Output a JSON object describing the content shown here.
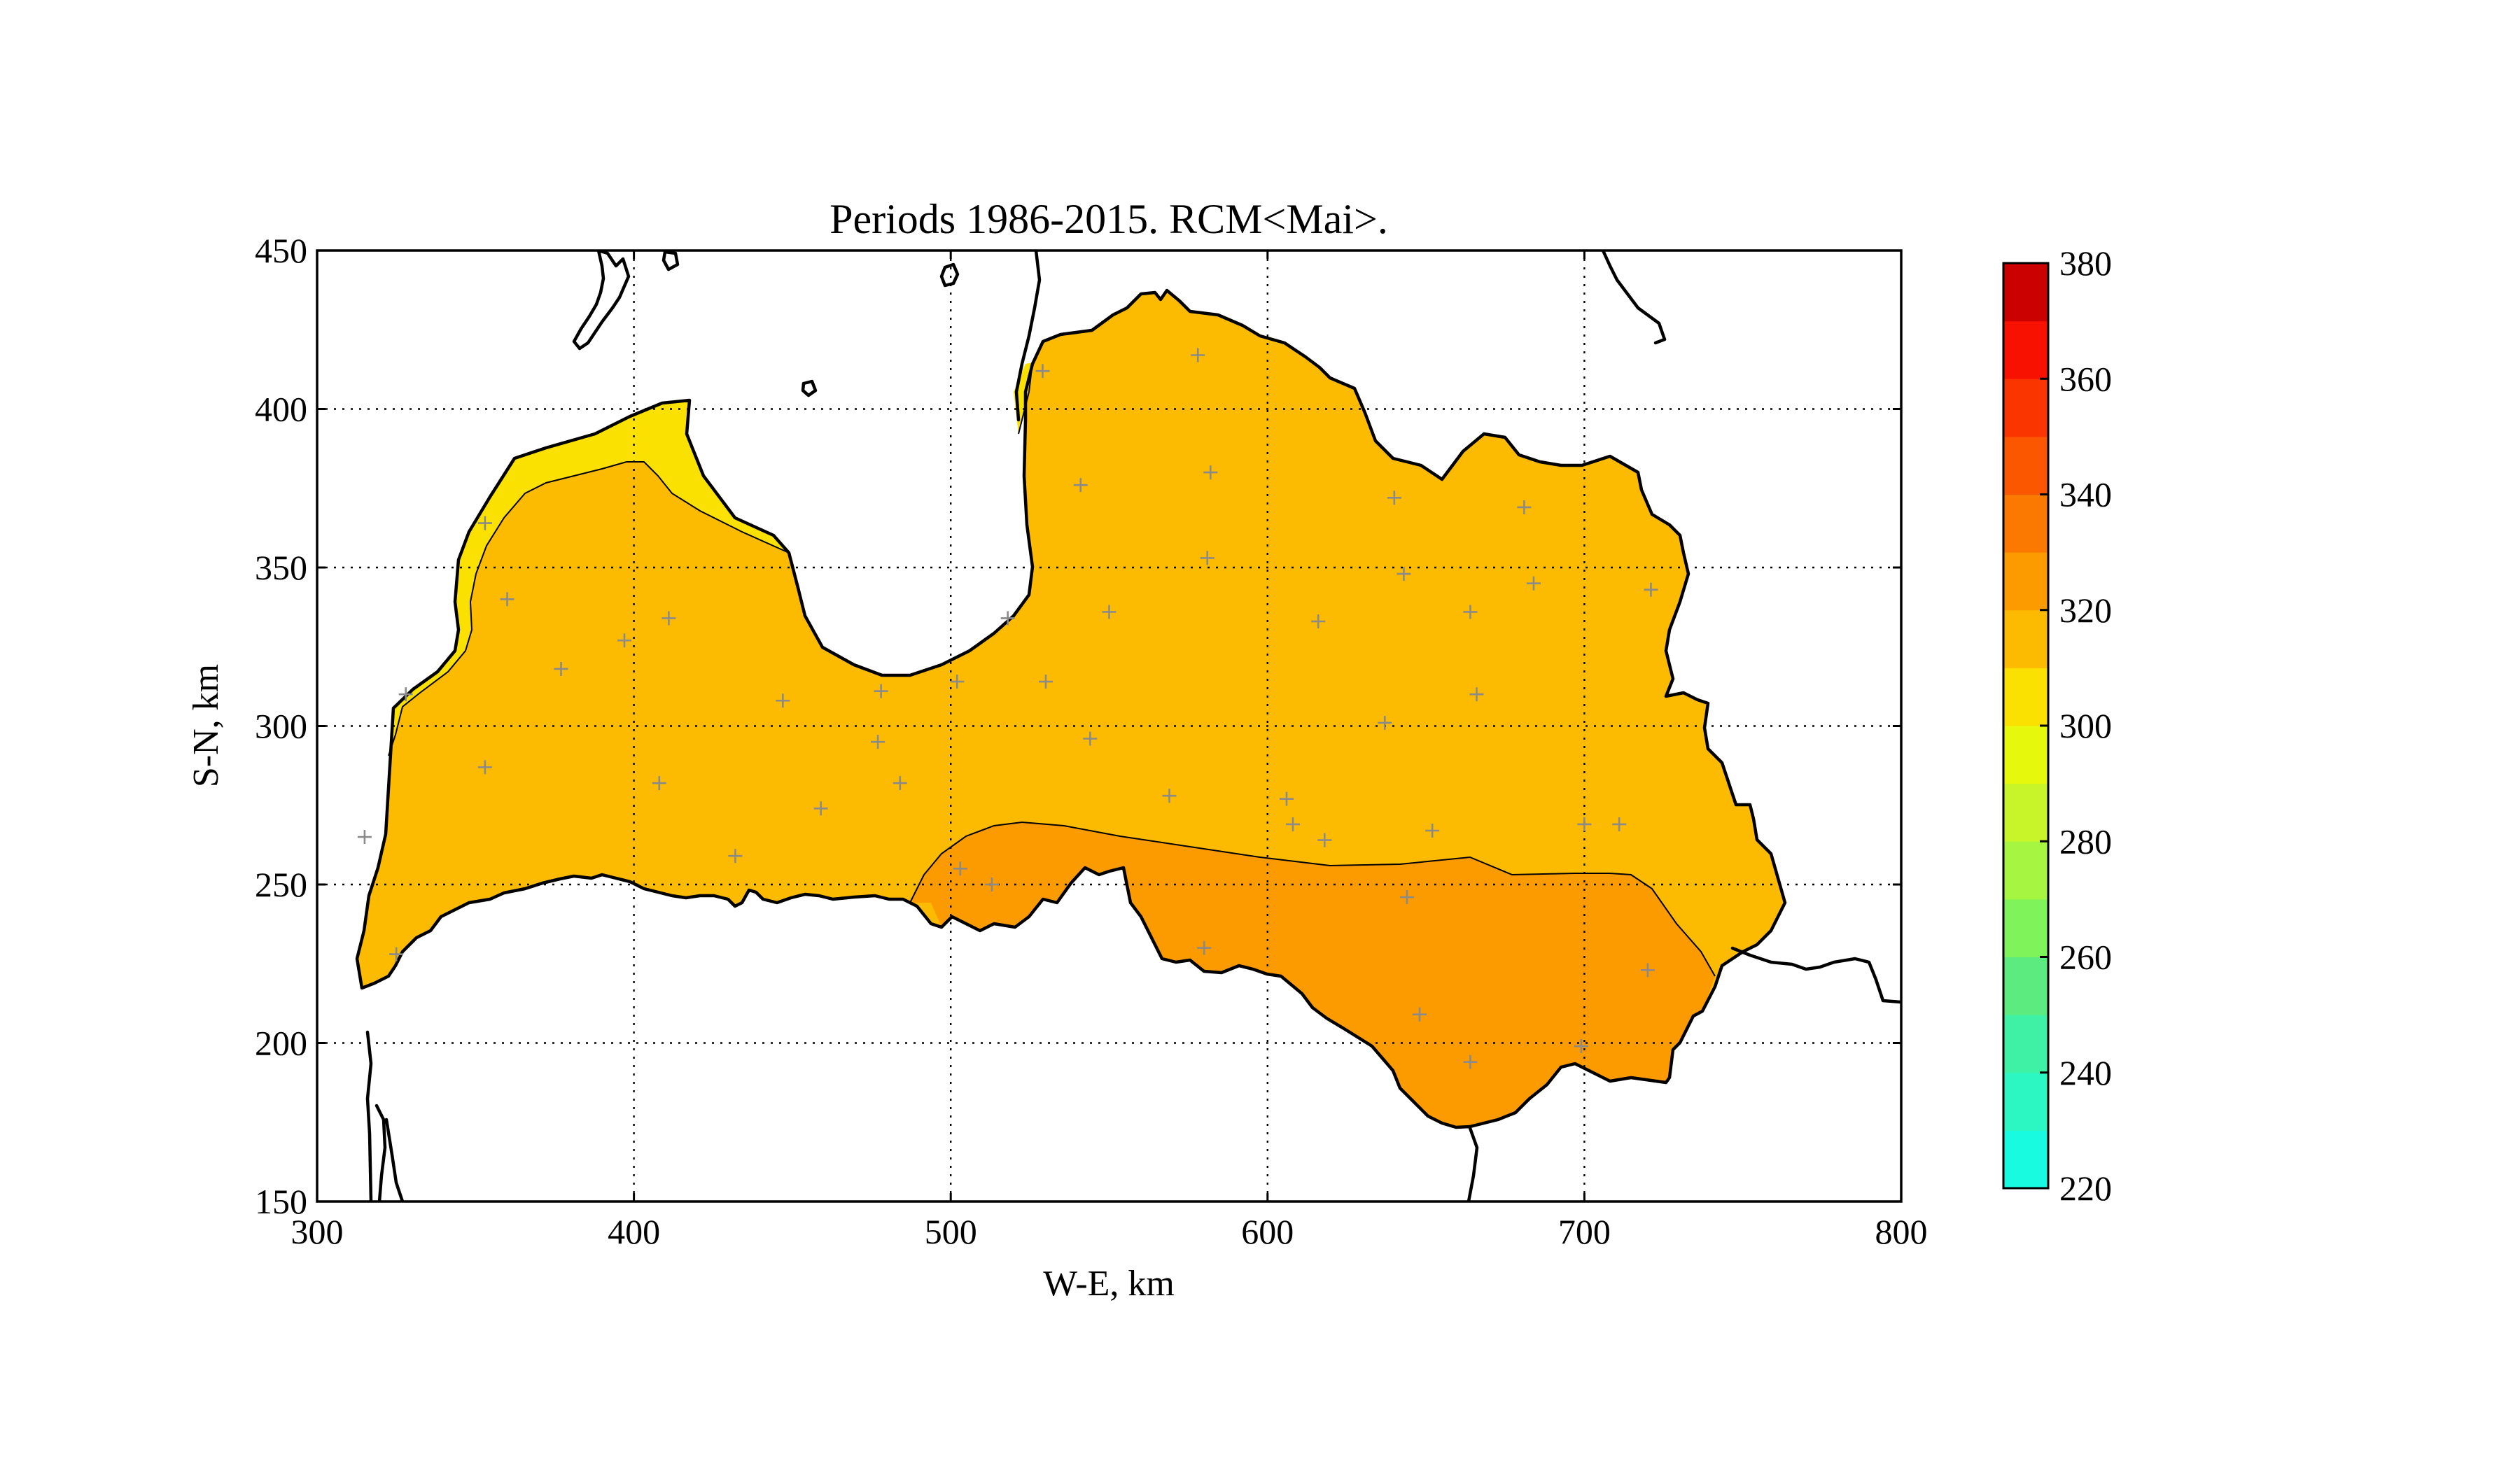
{
  "chart_data": {
    "type": "contour-map",
    "title": "Periods 1986-2015. RCM<Mai>.",
    "xlabel": "W-E, km",
    "ylabel": "S-N, km",
    "xlim": [
      300,
      800
    ],
    "ylim": [
      150,
      450
    ],
    "xticks": [
      "300",
      "400",
      "500",
      "600",
      "700",
      "800"
    ],
    "yticks": [
      "150",
      "200",
      "250",
      "300",
      "350",
      "400",
      "450"
    ],
    "grid": true,
    "colorbar": {
      "min": 220,
      "max": 380,
      "step": 10,
      "tick_labels": [
        "220",
        "240",
        "260",
        "280",
        "300",
        "320",
        "340",
        "360",
        "380"
      ],
      "colors": [
        "#19fbe0",
        "#2cf6c2",
        "#3ff1a4",
        "#5ceb7e",
        "#7ff35a",
        "#a6f541",
        "#c8f52a",
        "#e6f80c",
        "#fbe102",
        "#fcbb00",
        "#fb9b00",
        "#fb7900",
        "#fb5600",
        "#fb3500",
        "#f91100",
        "#cb0000"
      ]
    },
    "filled_levels": [
      {
        "range": [
          300,
          310
        ],
        "color": "#fbe102"
      },
      {
        "range": [
          310,
          320
        ],
        "color": "#fcbb00"
      },
      {
        "range": [
          320,
          330
        ],
        "color": "#fb9b00"
      }
    ],
    "stations": [
      [
        315,
        265
      ],
      [
        325,
        228
      ],
      [
        328,
        310
      ],
      [
        353,
        287
      ],
      [
        353,
        364
      ],
      [
        360,
        340
      ],
      [
        377,
        318
      ],
      [
        397,
        327
      ],
      [
        408,
        282
      ],
      [
        411,
        334
      ],
      [
        432,
        259
      ],
      [
        447,
        308
      ],
      [
        459,
        274
      ],
      [
        477,
        295
      ],
      [
        478,
        311
      ],
      [
        484,
        282
      ],
      [
        502,
        314
      ],
      [
        503,
        255
      ],
      [
        513,
        250
      ],
      [
        518,
        334
      ],
      [
        529,
        412
      ],
      [
        530,
        314
      ],
      [
        541,
        376
      ],
      [
        544,
        296
      ],
      [
        550,
        336
      ],
      [
        569,
        278
      ],
      [
        578,
        417
      ],
      [
        580,
        230
      ],
      [
        581,
        353
      ],
      [
        582,
        380
      ],
      [
        606,
        277
      ],
      [
        608,
        269
      ],
      [
        616,
        333
      ],
      [
        618,
        264
      ],
      [
        637,
        301
      ],
      [
        640,
        372
      ],
      [
        643,
        348
      ],
      [
        644,
        246
      ],
      [
        648,
        209
      ],
      [
        652,
        267
      ],
      [
        664,
        194
      ],
      [
        664,
        336
      ],
      [
        666,
        310
      ],
      [
        681,
        369
      ],
      [
        684,
        345
      ],
      [
        699,
        199
      ],
      [
        700,
        269
      ],
      [
        711,
        269
      ],
      [
        720,
        223
      ],
      [
        721,
        343
      ]
    ]
  }
}
